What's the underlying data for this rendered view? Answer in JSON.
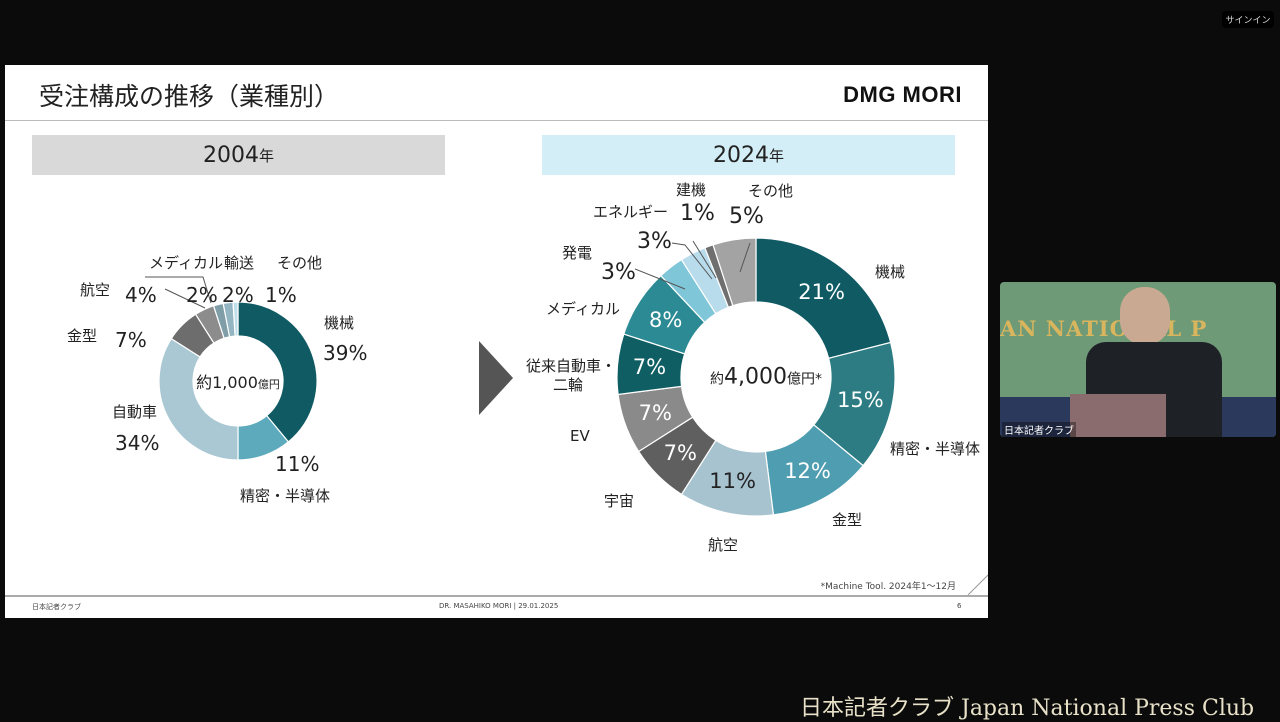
{
  "app": {
    "signin_label": "サインイン"
  },
  "slide": {
    "title": "受注構成の推移（業種別）",
    "logo_text": "DMG MORI",
    "footnote": "*Machine Tool. 2024年1～12月",
    "footer_left": "日本記者クラブ",
    "footer_center": "DR. MASAHIKO MORI | 29.01.2025",
    "page_number": "6"
  },
  "video": {
    "caption": "日本記者クラブ",
    "backdrop_text": "AN NATIONAL P"
  },
  "banner": "日本記者クラブ Japan National Press Club",
  "chart_data": [
    {
      "type": "pie",
      "donut": true,
      "title": "2004",
      "title_suffix": "年",
      "center_label": "約1,000",
      "center_unit": "億円",
      "categories": [
        "機械",
        "精密・半導体",
        "自動車",
        "金型",
        "航空",
        "メディカル",
        "輸送",
        "その他"
      ],
      "values": [
        39,
        11,
        34,
        7,
        4,
        2,
        2,
        1
      ],
      "colors": [
        "#0f5a63",
        "#5eaabd",
        "#a9c8d3",
        "#6d6d6d",
        "#8c8c8c",
        "#7f9ea8",
        "#93b6c2",
        "#bfe0ea"
      ]
    },
    {
      "type": "pie",
      "donut": true,
      "title": "2024",
      "title_suffix": "年",
      "center_label": "約4,000",
      "center_unit": "億円*",
      "categories": [
        "機械",
        "精密・半導体",
        "金型",
        "航空",
        "宇宙",
        "EV",
        "従来自動車・二輪",
        "メディカル",
        "発電",
        "エネルギー",
        "建機",
        "その他"
      ],
      "category_lines": {
        "従来自動車・二輪": [
          "従来自動車・",
          "二輪"
        ]
      },
      "values": [
        21,
        15,
        12,
        11,
        7,
        7,
        7,
        8,
        3,
        3,
        1,
        5
      ],
      "colors": [
        "#0f5a63",
        "#2d7c83",
        "#4f9db0",
        "#a7c3cf",
        "#5f5f5f",
        "#8a8a8a",
        "#0f5e64",
        "#2b8a93",
        "#7fc6d8",
        "#b8dcec",
        "#6f6f6f",
        "#a3a3a3"
      ]
    }
  ]
}
